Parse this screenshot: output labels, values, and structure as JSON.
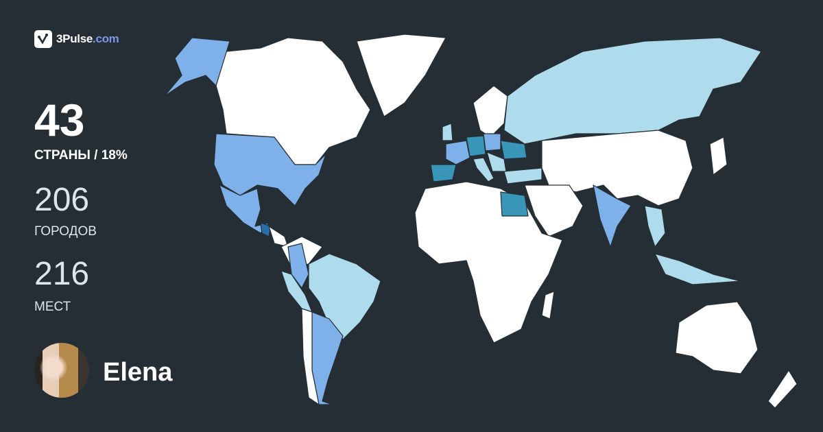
{
  "logo": {
    "brand": "3Pulse",
    "tld": ".com",
    "icon": "check-pulse-icon"
  },
  "stats": {
    "countries_value": "43",
    "countries_label": "СТРАНЫ / 18%",
    "cities_value": "206",
    "cities_label": "ГОРОДОВ",
    "places_value": "216",
    "places_label": "МЕСТ"
  },
  "user": {
    "name": "Elena"
  },
  "colors": {
    "background": "#252e35",
    "unvisited": "#ffffff",
    "visited_light": "#aedcec",
    "visited_medium": "#7eb0ea",
    "visited_strong": "#3a96b8",
    "visited_dark": "#2a6fa8",
    "brand_accent": "#7d95e8"
  }
}
